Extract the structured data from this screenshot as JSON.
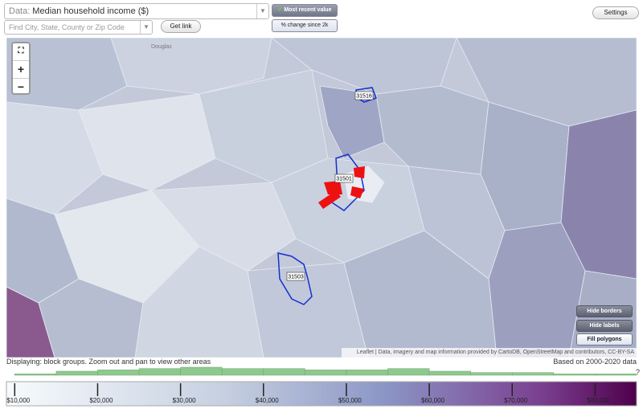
{
  "toolbar": {
    "data_prefix": "Data:",
    "data_value": "Median household income ($)",
    "search_placeholder": "Find City, State, County or Zip Code",
    "get_link": "Get link",
    "most_recent": "Most recent value",
    "change_since": "% change since 2k",
    "settings": "Settings"
  },
  "map": {
    "place_label": "Douglas",
    "zip_labels": [
      "31516",
      "31501",
      "31503"
    ],
    "buttons": [
      "Hide borders",
      "Hide labels",
      "Fill polygons"
    ],
    "attribution": "Leaflet | Data, imagery and map information provided by CartoDB, OpenStreetMap and contributors, CC-BY-SA"
  },
  "status": {
    "displaying": "Displaying: block groups. Zoom out and pan to view other areas",
    "based_on": "Based on 2000-2020 data",
    "help": "?"
  },
  "histogram": {
    "bins": [
      10000,
      15000,
      20000,
      25000,
      30000,
      35000,
      40000,
      45000,
      50000,
      55000,
      60000,
      65000,
      70000,
      75000,
      80000,
      85000
    ],
    "counts": [
      1,
      3,
      4,
      5,
      6,
      5,
      5,
      4,
      4,
      5,
      3,
      2,
      2,
      1,
      1
    ]
  },
  "legend": {
    "range": [
      9000,
      85000
    ],
    "ticks": [
      {
        "value": 10000,
        "label": "$10,000"
      },
      {
        "value": 20000,
        "label": "$20,000"
      },
      {
        "value": 30000,
        "label": "$30,000"
      },
      {
        "value": 40000,
        "label": "$40,000"
      },
      {
        "value": 50000,
        "label": "$50,000"
      },
      {
        "value": 60000,
        "label": "$60,000"
      },
      {
        "value": 70000,
        "label": "$70,000"
      },
      {
        "value": 80000,
        "label": "$80,000"
      }
    ]
  }
}
